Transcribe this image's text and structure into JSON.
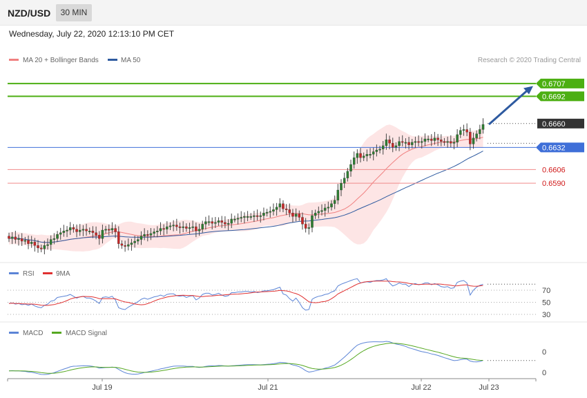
{
  "header": {
    "pair": "NZD/USD",
    "timeframe": "30 MIN",
    "datetime": "Wednesday, July 22, 2020 12:13:10 PM CET"
  },
  "credit": "Research © 2020 Trading Central",
  "colors": {
    "ma20": "#f08080",
    "ma50": "#2e5aa0",
    "band_fill": "#fde0e0",
    "up_candle": "#2e7d32",
    "down_candle": "#c62828",
    "resistance": "#4caf12",
    "pivot": "#3f6fd8",
    "support": "#f08a8a",
    "current": "#333333",
    "arrow": "#2e5aa0",
    "rsi": "#5b84d6",
    "rsi_ma": "#e03030",
    "macd": "#5b84d6",
    "macd_signal": "#55a820"
  },
  "chart_data": [
    {
      "type": "candlestick",
      "legend": [
        {
          "name": "MA 20 + Bollinger Bands",
          "color": "#f08080"
        },
        {
          "name": "MA 50",
          "color": "#2e5aa0"
        }
      ],
      "ylim": [
        0.6505,
        0.6732
      ],
      "x_ticks": [
        "Jul 19",
        "Jul 21",
        "Jul 22",
        "Jul 23"
      ],
      "levels": [
        {
          "value": 0.6707,
          "label": "0.6707",
          "kind": "resistance"
        },
        {
          "value": 0.6692,
          "label": "0.6692",
          "kind": "resistance"
        },
        {
          "value": 0.666,
          "label": "0.6660",
          "kind": "current"
        },
        {
          "value": 0.6632,
          "label": "0.6632",
          "kind": "pivot"
        },
        {
          "value": 0.6606,
          "label": "0.6606",
          "kind": "support"
        },
        {
          "value": 0.659,
          "label": "0.6590",
          "kind": "support"
        }
      ],
      "arrow": {
        "from": 0.6659,
        "to": 0.6704
      },
      "closes": [
        0.6525,
        0.6527,
        0.6524,
        0.6525,
        0.6522,
        0.6523,
        0.6519,
        0.6521,
        0.6517,
        0.6514,
        0.6513,
        0.6517,
        0.6518,
        0.6524,
        0.6525,
        0.653,
        0.6532,
        0.6534,
        0.6535,
        0.6538,
        0.6536,
        0.6533,
        0.6535,
        0.6536,
        0.6534,
        0.6534,
        0.6532,
        0.6529,
        0.6525,
        0.6535,
        0.6536,
        0.6535,
        0.6537,
        0.6533,
        0.6519,
        0.6517,
        0.6516,
        0.6518,
        0.652,
        0.6522,
        0.6524,
        0.6528,
        0.653,
        0.6529,
        0.6531,
        0.6533,
        0.6534,
        0.6537,
        0.6536,
        0.6539,
        0.654,
        0.6541,
        0.6539,
        0.6538,
        0.6539,
        0.6537,
        0.6538,
        0.6539,
        0.6534,
        0.6536,
        0.6542,
        0.6545,
        0.6545,
        0.6543,
        0.6544,
        0.6546,
        0.6544,
        0.6542,
        0.6543,
        0.6548,
        0.6548,
        0.6549,
        0.655,
        0.6551,
        0.6551,
        0.6551,
        0.6552,
        0.6551,
        0.6552,
        0.6555,
        0.6556,
        0.6557,
        0.6559,
        0.6562,
        0.6566,
        0.656,
        0.6559,
        0.6555,
        0.6551,
        0.6554,
        0.655,
        0.6542,
        0.6537,
        0.6538,
        0.6552,
        0.6555,
        0.6557,
        0.6558,
        0.6561,
        0.6562,
        0.6566,
        0.657,
        0.6582,
        0.659,
        0.6596,
        0.6604,
        0.6612,
        0.662,
        0.6625,
        0.662,
        0.6622,
        0.6624,
        0.6624,
        0.6627,
        0.6629,
        0.663,
        0.6634,
        0.6641,
        0.6637,
        0.6632,
        0.6634,
        0.6639,
        0.6638,
        0.6638,
        0.6635,
        0.6638,
        0.6639,
        0.6638,
        0.6639,
        0.6642,
        0.6642,
        0.664,
        0.6643,
        0.6641,
        0.6639,
        0.6638,
        0.6639,
        0.6637,
        0.6638,
        0.6647,
        0.6652,
        0.6653,
        0.665,
        0.6636,
        0.6643,
        0.6648,
        0.6653,
        0.6659
      ]
    },
    {
      "type": "line",
      "series": [
        {
          "name": "RSI"
        },
        {
          "name": "9MA"
        }
      ],
      "y_ticks": [
        "70",
        "50",
        "30"
      ],
      "values": [
        48,
        49,
        47,
        48,
        46,
        47,
        45,
        47,
        44,
        42,
        41,
        45,
        47,
        52,
        53,
        58,
        59,
        60,
        61,
        63,
        60,
        57,
        59,
        60,
        57,
        57,
        55,
        52,
        48,
        58,
        59,
        58,
        60,
        54,
        41,
        39,
        38,
        42,
        45,
        48,
        51,
        55,
        57,
        55,
        57,
        59,
        60,
        62,
        60,
        63,
        64,
        64,
        61,
        60,
        61,
        58,
        60,
        61,
        54,
        57,
        63,
        65,
        65,
        62,
        63,
        65,
        62,
        60,
        61,
        66,
        66,
        67,
        67,
        68,
        68,
        67,
        68,
        66,
        67,
        69,
        69,
        70,
        71,
        73,
        75,
        64,
        62,
        56,
        52,
        57,
        50,
        41,
        37,
        38,
        55,
        58,
        60,
        61,
        63,
        64,
        67,
        69,
        77,
        80,
        82,
        84,
        86,
        88,
        89,
        82,
        83,
        84,
        83,
        85,
        86,
        86,
        87,
        89,
        82,
        77,
        79,
        82,
        80,
        80,
        76,
        80,
        81,
        79,
        80,
        82,
        82,
        79,
        81,
        79,
        76,
        75,
        76,
        73,
        74,
        83,
        85,
        86,
        82,
        62,
        70,
        75,
        78,
        80
      ]
    },
    {
      "type": "line",
      "series": [
        {
          "name": "MACD"
        },
        {
          "name": "MACD Signal"
        }
      ],
      "y_ticks": [
        "0",
        "0"
      ]
    }
  ]
}
